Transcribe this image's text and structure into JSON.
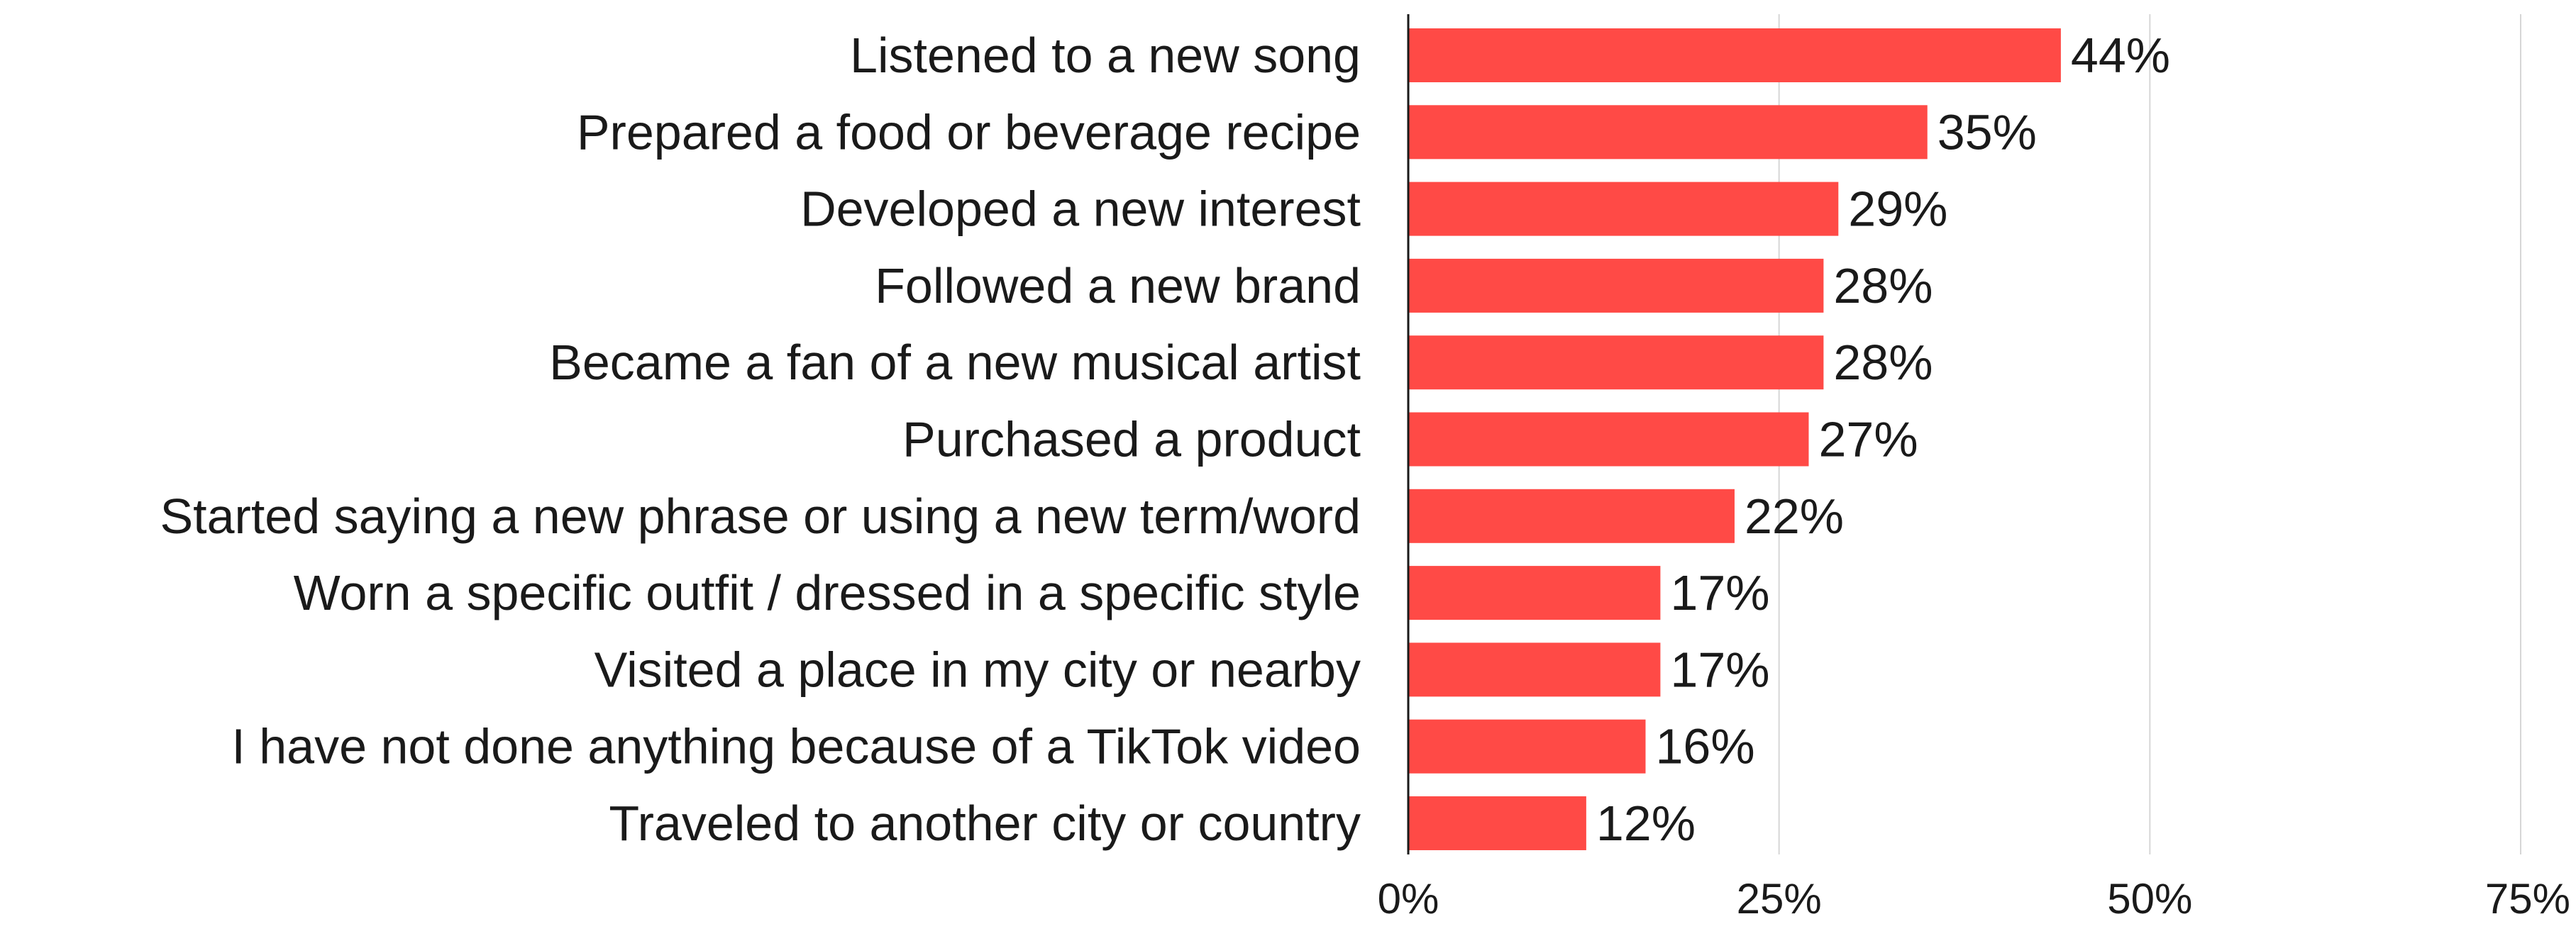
{
  "chart_data": {
    "type": "bar",
    "orientation": "horizontal",
    "categories": [
      "Listened to a new song",
      "Prepared a food or beverage recipe",
      "Developed a new interest",
      "Followed a new brand",
      "Became a fan of a new musical artist",
      "Purchased a product",
      "Started saying a new phrase or using a new term/word",
      "Worn a specific outfit / dressed in a specific style",
      "Visited a place in my city or nearby",
      "I have not done anything because of a TikTok video",
      "Traveled to another city or country"
    ],
    "values": [
      44,
      35,
      29,
      28,
      28,
      27,
      22,
      17,
      17,
      16,
      12
    ],
    "value_labels": [
      "44%",
      "35%",
      "29%",
      "28%",
      "28%",
      "27%",
      "22%",
      "17%",
      "17%",
      "16%",
      "12%"
    ],
    "xlim": [
      0,
      75
    ],
    "xticks": [
      0,
      25,
      50,
      75
    ],
    "xtick_labels": [
      "0%",
      "25%",
      "50%",
      "75%"
    ],
    "bar_color": "#ff4a46",
    "grid": "vertical",
    "legend": "none"
  }
}
